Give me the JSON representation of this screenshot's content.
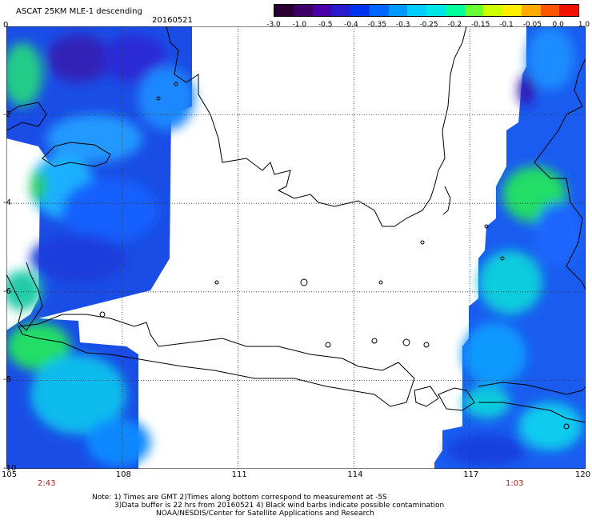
{
  "header": {
    "title": "ASCAT 25KM MLE-1 descending",
    "date": "20160521"
  },
  "colorbar": {
    "labels": [
      "-3.0",
      "-1.0",
      "-0.5",
      "-0.4",
      "-0.35",
      "-0.3",
      "-0.25",
      "-0.2",
      "-0.15",
      "-0.1",
      "-0.05",
      "0.0",
      "1.0"
    ],
    "colors": [
      "#2a0033",
      "#3d0066",
      "#4a00a8",
      "#2a1ccc",
      "#0033ee",
      "#0066ff",
      "#0099ff",
      "#00ccff",
      "#00e6e6",
      "#00ff99",
      "#66ff33",
      "#ccff00",
      "#ffee00",
      "#ffaa00",
      "#ff5500",
      "#ee1100"
    ]
  },
  "axes": {
    "x_ticks": [
      "105",
      "108",
      "111",
      "114",
      "117",
      "120"
    ],
    "y_ticks": [
      "0",
      "-2",
      "-4",
      "-6",
      "-8",
      "-10"
    ]
  },
  "times": {
    "left": "2:43",
    "right": "1:03"
  },
  "notes": {
    "line1": "Note: 1) Times are GMT 2)Times along bottom correspond to measurement at -5S",
    "line2": "3)Data buffer is 22 hrs from 20160521 4) Black wind barbs indicate possible contamination",
    "line3": "NOAA/NESDIS/Center for Satellite Applications and Research"
  }
}
